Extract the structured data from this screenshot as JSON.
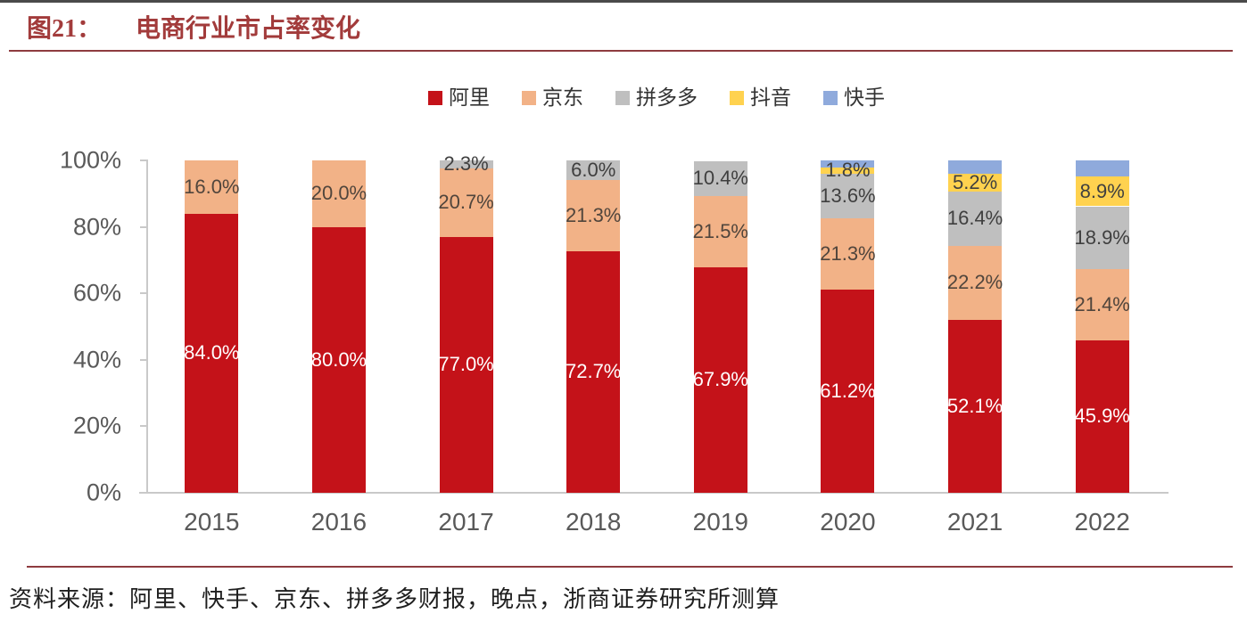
{
  "header": {
    "figure_label": "图21：",
    "title": "电商行业市占率变化"
  },
  "footer": {
    "source": "资料来源：阿里、快手、京东、拼多多财报，晚点，浙商证券研究所测算"
  },
  "chart_data": {
    "type": "bar",
    "variant": "stacked-100-percent",
    "title": "电商行业市占率变化",
    "xlabel": "",
    "ylabel": "",
    "grid": false,
    "legend_position": "top",
    "ylim": [
      0,
      100
    ],
    "y_ticks": [
      "0%",
      "20%",
      "40%",
      "60%",
      "80%",
      "100%"
    ],
    "categories": [
      "2015",
      "2016",
      "2017",
      "2018",
      "2019",
      "2020",
      "2021",
      "2022"
    ],
    "series": [
      {
        "name": "阿里",
        "color": "#C41219",
        "label_color": "#FFFFFF",
        "values": [
          84.0,
          80.0,
          77.0,
          72.7,
          67.9,
          61.2,
          52.1,
          45.9
        ],
        "labels": [
          "84.0%",
          "80.0%",
          "77.0%",
          "72.7%",
          "67.9%",
          "61.2%",
          "52.1%",
          "45.9%"
        ]
      },
      {
        "name": "京东",
        "color": "#F2B287",
        "label_color": "#50453C",
        "values": [
          16.0,
          20.0,
          20.7,
          21.3,
          21.5,
          21.3,
          22.2,
          21.4
        ],
        "labels": [
          "16.0%",
          "20.0%",
          "20.7%",
          "21.3%",
          "21.5%",
          "21.3%",
          "22.2%",
          "21.4%"
        ]
      },
      {
        "name": "拼多多",
        "color": "#BFBFBF",
        "label_color": "#3F3F3F",
        "values": [
          0,
          0,
          2.3,
          6.0,
          10.4,
          13.6,
          16.4,
          18.9
        ],
        "labels": [
          "",
          "",
          "2.3%",
          "6.0%",
          "10.4%",
          "13.6%",
          "16.4%",
          "18.9%"
        ]
      },
      {
        "name": "抖音",
        "color": "#FFD24F",
        "label_color": "#3F3F3F",
        "values": [
          0,
          0,
          0,
          0,
          0,
          1.8,
          5.2,
          8.9
        ],
        "labels": [
          "",
          "",
          "",
          "",
          "",
          "1.8%",
          "5.2%",
          "8.9%"
        ]
      },
      {
        "name": "快手",
        "color": "#8FAADC",
        "label_color": "#3F3F3F",
        "values": [
          0,
          0,
          0,
          0,
          0,
          2.1,
          4.1,
          4.9
        ],
        "labels": [
          "",
          "",
          "",
          "",
          "",
          "",
          "",
          ""
        ]
      }
    ]
  }
}
